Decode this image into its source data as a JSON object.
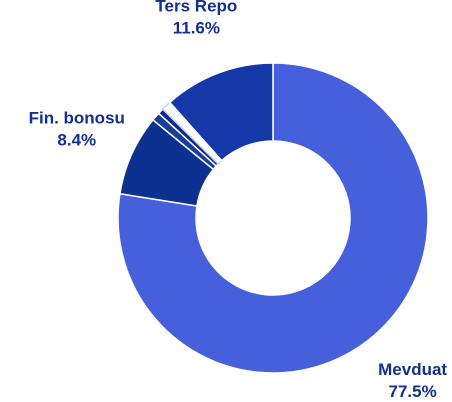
{
  "chart_data": {
    "type": "donut",
    "categories": [
      "Mevduat",
      "Fin. bonosu",
      null,
      null,
      null,
      "Ters Repo"
    ],
    "values": [
      77.5,
      8.4,
      0.9,
      0.6,
      1.0,
      11.6
    ],
    "value_labels": [
      "77.5%",
      "8.4%",
      null,
      null,
      null,
      "11.6%"
    ],
    "colors": [
      "#4660dc",
      "#0d3190",
      "#1a3c9e",
      "#0f2b82",
      "#ffffff",
      "#1438a8"
    ]
  }
}
